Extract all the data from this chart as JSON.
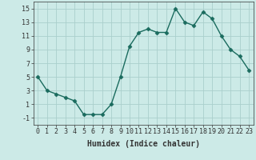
{
  "x": [
    0,
    1,
    2,
    3,
    4,
    5,
    6,
    7,
    8,
    9,
    10,
    11,
    12,
    13,
    14,
    15,
    16,
    17,
    18,
    19,
    20,
    21,
    22,
    23
  ],
  "y": [
    5,
    3,
    2.5,
    2,
    1.5,
    -0.5,
    -0.5,
    -0.5,
    1,
    5,
    9.5,
    11.5,
    12,
    11.5,
    11.5,
    15,
    13,
    12.5,
    14.5,
    13.5,
    11,
    9,
    8,
    6
  ],
  "line_color": "#1a6b5e",
  "marker": "D",
  "marker_size": 2.5,
  "bg_color": "#cceae7",
  "grid_color": "#aacfcc",
  "xlabel": "Humidex (Indice chaleur)",
  "xlabel_fontsize": 7,
  "yticks": [
    -1,
    1,
    3,
    5,
    7,
    9,
    11,
    13,
    15
  ],
  "xticks": [
    0,
    1,
    2,
    3,
    4,
    5,
    6,
    7,
    8,
    9,
    10,
    11,
    12,
    13,
    14,
    15,
    16,
    17,
    18,
    19,
    20,
    21,
    22,
    23
  ],
  "ylim": [
    -2,
    16
  ],
  "xlim": [
    -0.5,
    23.5
  ],
  "tick_label_fontsize": 6,
  "tick_color": "#333333",
  "linewidth": 1.0
}
